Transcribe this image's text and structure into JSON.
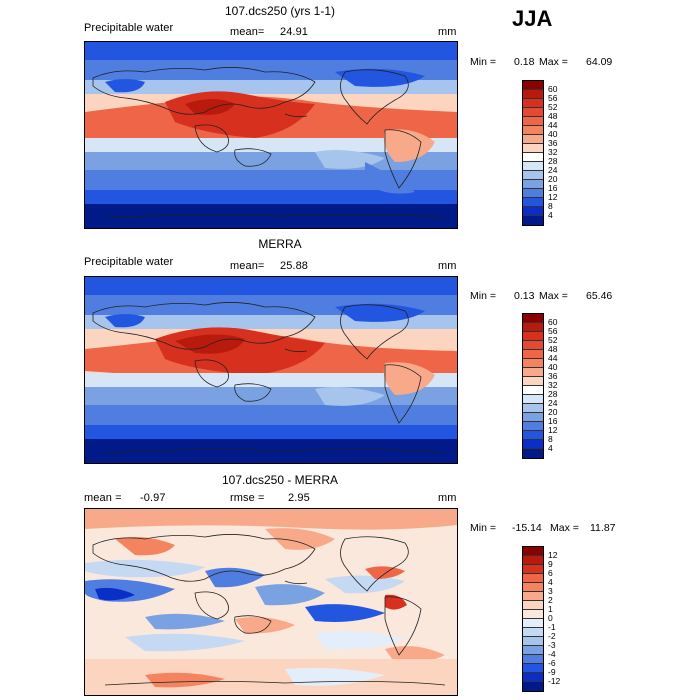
{
  "season": "JJA",
  "panels": [
    {
      "title": "107.dcs250 (yrs 1-1)",
      "left_label": "Precipitable water",
      "mean_label": "mean=",
      "mean_value": "24.91",
      "units": "mm",
      "min_label": "Min =",
      "min_value": "0.18",
      "max_label": "Max =",
      "max_value": "64.09",
      "colorbar": {
        "ticks": [
          "60",
          "56",
          "52",
          "48",
          "44",
          "40",
          "36",
          "32",
          "28",
          "24",
          "20",
          "16",
          "12",
          "8",
          "4"
        ],
        "colors": [
          "#8b0000",
          "#b81a0e",
          "#d7301f",
          "#e34a33",
          "#ef6548",
          "#f4845f",
          "#f8a98a",
          "#fbd5c0",
          "#ffffff",
          "#d6e6f7",
          "#a6c4ec",
          "#7aa2e3",
          "#4f7ee0",
          "#2356e0",
          "#0a2fc9",
          "#001a8a"
        ]
      }
    },
    {
      "title": "MERRA",
      "left_label": "Precipitable water",
      "mean_label": "mean=",
      "mean_value": "25.88",
      "units": "mm",
      "min_label": "Min =",
      "min_value": "0.13",
      "max_label": "Max =",
      "max_value": "65.46",
      "colorbar": {
        "ticks": [
          "60",
          "56",
          "52",
          "48",
          "44",
          "40",
          "36",
          "32",
          "28",
          "24",
          "20",
          "16",
          "12",
          "8",
          "4"
        ],
        "colors": [
          "#8b0000",
          "#b81a0e",
          "#d7301f",
          "#e34a33",
          "#ef6548",
          "#f4845f",
          "#f8a98a",
          "#fbd5c0",
          "#ffffff",
          "#d6e6f7",
          "#a6c4ec",
          "#7aa2e3",
          "#4f7ee0",
          "#2356e0",
          "#0a2fc9",
          "#001a8a"
        ]
      }
    },
    {
      "title": "107.dcs250 - MERRA",
      "left_label": "mean =",
      "mean_label": "rmse =",
      "left_value": "-0.97",
      "mean_value": "2.95",
      "units": "mm",
      "min_label": "Min =",
      "min_value": "-15.14",
      "max_label": "Max =",
      "max_value": "11.87",
      "colorbar": {
        "ticks": [
          "12",
          "9",
          "6",
          "4",
          "3",
          "2",
          "1",
          "0",
          "-1",
          "-2",
          "-3",
          "-4",
          "-6",
          "-9",
          "-12"
        ],
        "colors": [
          "#8b0000",
          "#b81a0e",
          "#d7301f",
          "#ef6548",
          "#f4845f",
          "#f8a98a",
          "#fbd5c0",
          "#fbe8dc",
          "#e4eefb",
          "#c5d9f3",
          "#a6c4ec",
          "#7aa2e3",
          "#4f7ee0",
          "#2356e0",
          "#0a2fc9",
          "#001a8a"
        ]
      }
    }
  ],
  "palette": {
    "deep_blue": "#00188f",
    "blue": "#2a5be0",
    "light_blue": "#9fc0ee",
    "white": "#ffffff",
    "peach": "#f6b49a",
    "orange": "#ef6a45",
    "red": "#d7301f",
    "coast": "#222222"
  }
}
